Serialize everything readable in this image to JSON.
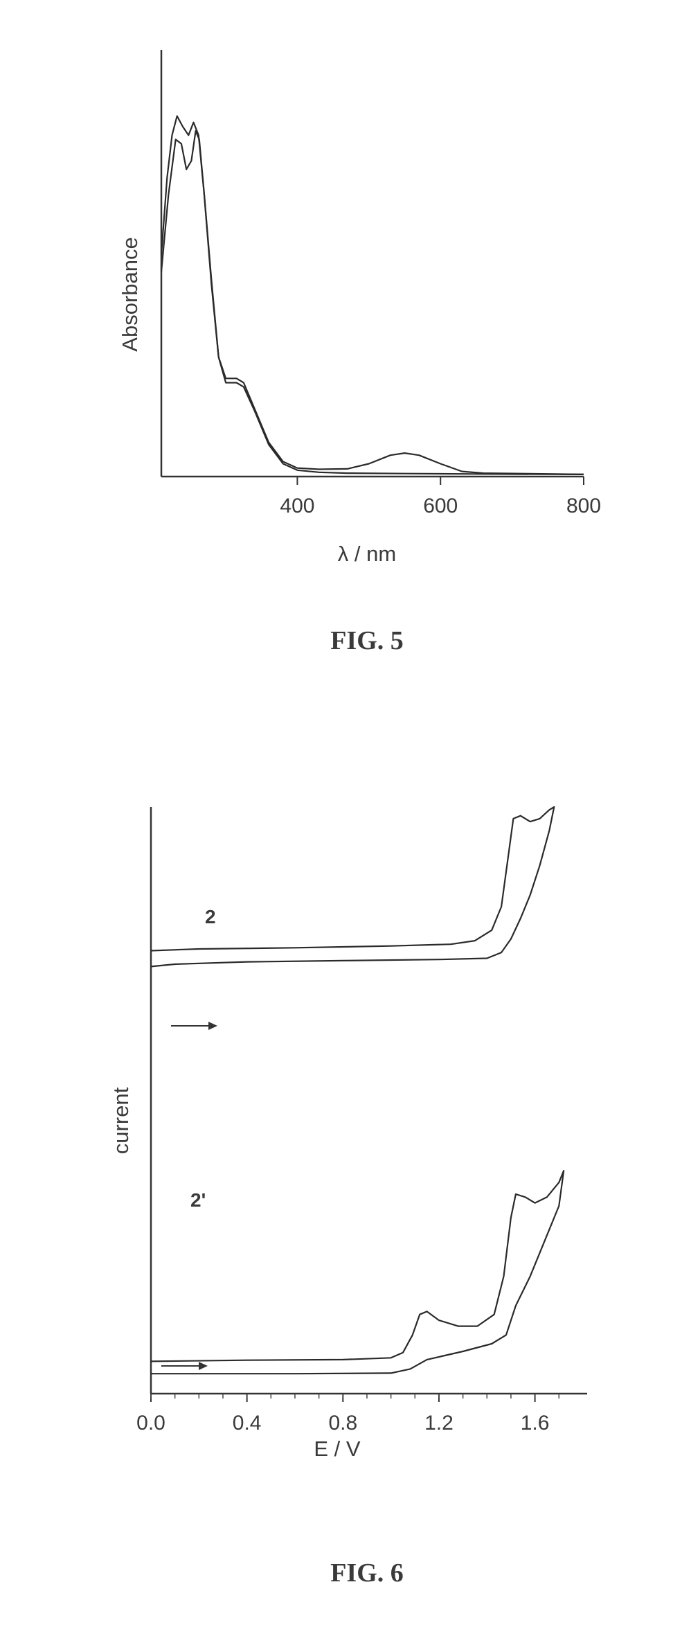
{
  "chart_data": [
    {
      "type": "line",
      "caption": "FIG. 5",
      "xlabel": "λ / nm",
      "ylabel": "Absorbance",
      "xlim": [
        210,
        800
      ],
      "ylim": [
        0,
        1.0
      ],
      "x_ticks": [
        400,
        600,
        800
      ],
      "grid": false,
      "series": [
        {
          "points": [
            [
              210,
              0.48
            ],
            [
              220,
              0.66
            ],
            [
              230,
              0.79
            ],
            [
              238,
              0.78
            ],
            [
              245,
              0.72
            ],
            [
              252,
              0.74
            ],
            [
              258,
              0.81
            ],
            [
              263,
              0.79
            ],
            [
              270,
              0.66
            ],
            [
              280,
              0.46
            ],
            [
              290,
              0.28
            ],
            [
              300,
              0.23
            ],
            [
              315,
              0.23
            ],
            [
              325,
              0.22
            ],
            [
              340,
              0.16
            ],
            [
              360,
              0.08
            ],
            [
              380,
              0.035
            ],
            [
              400,
              0.02
            ],
            [
              430,
              0.017
            ],
            [
              470,
              0.018
            ],
            [
              500,
              0.03
            ],
            [
              530,
              0.05
            ],
            [
              550,
              0.055
            ],
            [
              570,
              0.05
            ],
            [
              600,
              0.03
            ],
            [
              630,
              0.012
            ],
            [
              660,
              0.008
            ],
            [
              800,
              0.005
            ]
          ]
        },
        {
          "points": [
            [
              210,
              0.52
            ],
            [
              218,
              0.7
            ],
            [
              225,
              0.8
            ],
            [
              232,
              0.845
            ],
            [
              240,
              0.82
            ],
            [
              248,
              0.8
            ],
            [
              255,
              0.83
            ],
            [
              262,
              0.8
            ],
            [
              270,
              0.66
            ],
            [
              280,
              0.45
            ],
            [
              290,
              0.28
            ],
            [
              300,
              0.22
            ],
            [
              315,
              0.22
            ],
            [
              325,
              0.21
            ],
            [
              340,
              0.155
            ],
            [
              360,
              0.075
            ],
            [
              380,
              0.03
            ],
            [
              400,
              0.015
            ],
            [
              430,
              0.01
            ],
            [
              470,
              0.008
            ],
            [
              550,
              0.007
            ],
            [
              650,
              0.006
            ],
            [
              800,
              0.005
            ]
          ]
        }
      ]
    },
    {
      "type": "line",
      "caption": "FIG. 6",
      "xlabel": "E / V",
      "ylabel": "current",
      "xlim": [
        0.0,
        1.78
      ],
      "ylim": [
        0,
        1.0
      ],
      "x_ticks": [
        0.0,
        0.4,
        0.8,
        1.2,
        1.6
      ],
      "x_tick_labels": [
        "0.0",
        "0.4",
        "0.8",
        "1.2",
        "1.6"
      ],
      "grid": false,
      "series": [
        {
          "name": "2",
          "points": [
            [
              0.0,
              0.755
            ],
            [
              0.2,
              0.758
            ],
            [
              0.6,
              0.76
            ],
            [
              1.0,
              0.763
            ],
            [
              1.25,
              0.766
            ],
            [
              1.35,
              0.772
            ],
            [
              1.42,
              0.79
            ],
            [
              1.46,
              0.83
            ],
            [
              1.49,
              0.92
            ],
            [
              1.51,
              0.98
            ],
            [
              1.54,
              0.985
            ],
            [
              1.58,
              0.975
            ],
            [
              1.62,
              0.98
            ],
            [
              1.66,
              0.995
            ],
            [
              1.68,
              1.0
            ],
            [
              1.66,
              0.96
            ],
            [
              1.62,
              0.9
            ],
            [
              1.58,
              0.85
            ],
            [
              1.54,
              0.81
            ],
            [
              1.5,
              0.775
            ],
            [
              1.46,
              0.752
            ],
            [
              1.4,
              0.742
            ],
            [
              1.2,
              0.74
            ],
            [
              0.8,
              0.738
            ],
            [
              0.4,
              0.736
            ],
            [
              0.1,
              0.732
            ],
            [
              0.0,
              0.728
            ]
          ]
        },
        {
          "name": "2'",
          "points": [
            [
              0.0,
              0.055
            ],
            [
              0.4,
              0.057
            ],
            [
              0.8,
              0.058
            ],
            [
              1.0,
              0.061
            ],
            [
              1.05,
              0.07
            ],
            [
              1.09,
              0.1
            ],
            [
              1.12,
              0.135
            ],
            [
              1.15,
              0.14
            ],
            [
              1.2,
              0.125
            ],
            [
              1.28,
              0.115
            ],
            [
              1.36,
              0.115
            ],
            [
              1.43,
              0.135
            ],
            [
              1.47,
              0.2
            ],
            [
              1.5,
              0.3
            ],
            [
              1.52,
              0.34
            ],
            [
              1.56,
              0.335
            ],
            [
              1.6,
              0.325
            ],
            [
              1.65,
              0.335
            ],
            [
              1.7,
              0.36
            ],
            [
              1.72,
              0.38
            ],
            [
              1.7,
              0.32
            ],
            [
              1.64,
              0.26
            ],
            [
              1.58,
              0.2
            ],
            [
              1.52,
              0.15
            ],
            [
              1.48,
              0.1
            ],
            [
              1.42,
              0.085
            ],
            [
              1.3,
              0.072
            ],
            [
              1.15,
              0.058
            ],
            [
              1.08,
              0.042
            ],
            [
              1.0,
              0.035
            ],
            [
              0.6,
              0.034
            ],
            [
              0.2,
              0.034
            ],
            [
              0.0,
              0.034
            ]
          ]
        }
      ],
      "annotations": {
        "label_2": "2",
        "label_2prime": "2'",
        "scan_direction": "arrow"
      }
    }
  ]
}
